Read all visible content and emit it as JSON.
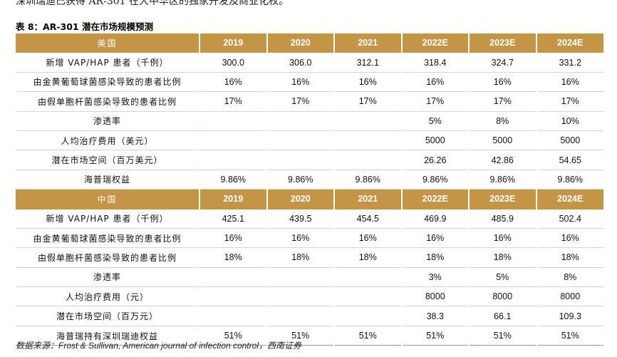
{
  "intro_text": "深圳瑞迪已获得 AR-301 在大中华区的独家开发及商业化权。",
  "caption": "表 8：AR-301 潜在市场规模预测",
  "sections": [
    {
      "region": "美国",
      "years": [
        "2019",
        "2020",
        "2021",
        "2022E",
        "2023E",
        "2024E"
      ],
      "rows": [
        {
          "label": "新增 VAP/HAP 患者（千例）",
          "values": [
            "300.0",
            "306.0",
            "312.1",
            "318.4",
            "324.7",
            "331.2"
          ]
        },
        {
          "label": "由金黄葡萄球菌感染导致的患者比例",
          "values": [
            "16%",
            "16%",
            "16%",
            "16%",
            "16%",
            "16%"
          ]
        },
        {
          "label": "由假单胞杆菌感染导致的患者比例",
          "values": [
            "17%",
            "17%",
            "17%",
            "17%",
            "17%",
            "17%"
          ]
        },
        {
          "label": "渗透率",
          "values": [
            "",
            "",
            "",
            "5%",
            "8%",
            "10%"
          ]
        },
        {
          "label": "人均治疗费用（美元）",
          "values": [
            "",
            "",
            "",
            "5000",
            "5000",
            "5000"
          ]
        },
        {
          "label": "潜在市场空间（百万美元）",
          "values": [
            "",
            "",
            "",
            "26.26",
            "42.86",
            "54.65"
          ]
        },
        {
          "label": "海普瑞权益",
          "values": [
            "9.86%",
            "9.86%",
            "9.86%",
            "9.86%",
            "9.86%",
            "9.86%"
          ]
        }
      ]
    },
    {
      "region": "中国",
      "years": [
        "2019",
        "2020",
        "2021",
        "2022E",
        "2023E",
        "2024E"
      ],
      "rows": [
        {
          "label": "新增 VAP/HAP 患者（千例）",
          "values": [
            "425.1",
            "439.5",
            "454.5",
            "469.9",
            "485.9",
            "502.4"
          ]
        },
        {
          "label": "由金黄葡萄球菌感染导致的患者比例",
          "values": [
            "16%",
            "16%",
            "16%",
            "16%",
            "16%",
            "16%"
          ]
        },
        {
          "label": "由假单胞杆菌感染导致的患者比例",
          "values": [
            "18%",
            "18%",
            "18%",
            "18%",
            "18%",
            "18%"
          ]
        },
        {
          "label": "渗透率",
          "values": [
            "",
            "",
            "",
            "3%",
            "5%",
            "8%"
          ]
        },
        {
          "label": "人均治疗费用（元）",
          "values": [
            "",
            "",
            "",
            "8000",
            "8000",
            "8000"
          ]
        },
        {
          "label": "潜在市场空间（百万元）",
          "values": [
            "",
            "",
            "",
            "38.3",
            "66.1",
            "109.3"
          ]
        },
        {
          "label": "海普瑞持有深圳瑞迪权益",
          "values": [
            "51%",
            "51%",
            "51%",
            "51%",
            "51%",
            "51%"
          ]
        }
      ]
    }
  ],
  "source": "数据来源：Frost & Sullivan, American journal of infection control，西南证券"
}
